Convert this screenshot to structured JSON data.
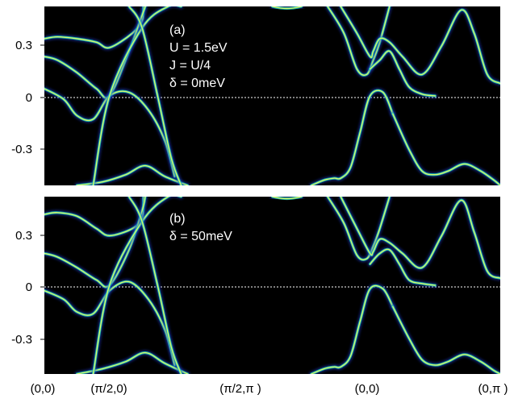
{
  "colors": {
    "background": "#000000",
    "band_core": "#d8f56a",
    "band_glow": "#16c3b6",
    "band_halo": "#1e3cc8",
    "zero_line": "#ffffff"
  },
  "chart_data": [
    {
      "type": "line",
      "panel": "a",
      "annotations": [
        "(a)",
        "U = 1.5eV",
        "J = U/4",
        "δ = 0meV"
      ],
      "ylim": [
        -0.5,
        0.5
      ],
      "yticks": [
        "0.3",
        "0",
        "-0.3"
      ],
      "xticks": [
        "(0,0)",
        "(π/2,0)",
        "(π/2,π )",
        "(0,0)",
        "(0,π )"
      ],
      "series": [
        {
          "x": [
            0,
            0.2,
            0.5,
            0.8,
            1.0,
            1.35,
            1.5,
            1.52
          ],
          "y": [
            0.32,
            0.33,
            0.32,
            0.3,
            0.27,
            0.35,
            0.42,
            0.5
          ]
        },
        {
          "x": [
            0,
            0.2,
            0.5,
            0.8,
            1.0,
            1.3,
            1.5,
            1.55
          ],
          "y": [
            0.22,
            0.2,
            0.13,
            0.04,
            0,
            0.25,
            0.45,
            0.5
          ]
        },
        {
          "x": [
            0,
            0.3,
            0.5,
            0.75,
            1.0,
            1.3,
            1.6,
            1.85,
            2.0
          ],
          "y": [
            0.04,
            -0.02,
            -0.11,
            -0.13,
            0,
            0.02,
            -0.08,
            -0.25,
            -0.45
          ]
        },
        {
          "x": [
            0.5,
            0.9,
            1.25,
            1.55,
            1.85,
            2.2
          ],
          "y": [
            -0.5,
            -0.48,
            -0.44,
            -0.39,
            -0.45,
            -0.5
          ]
        },
        {
          "x": [
            0.75,
            1.0,
            1.5,
            1.9,
            2.1
          ],
          "y": [
            -0.5,
            0,
            0.38,
            0.5,
            0.5
          ]
        },
        {
          "x": [
            1.3,
            1.5,
            1.75,
            1.95,
            2.1
          ],
          "y": [
            0.5,
            0.38,
            -0.02,
            -0.35,
            -0.5
          ]
        },
        {
          "x": [
            3.5,
            3.65,
            3.8,
            3.95
          ],
          "y": [
            0.5,
            0.49,
            0.49,
            0.5
          ]
        },
        {
          "x": [
            4.1,
            4.3,
            4.45,
            4.55,
            4.7,
            4.85,
            5.0,
            5.2,
            5.35
          ],
          "y": [
            -0.5,
            -0.47,
            -0.46,
            -0.46,
            -0.4,
            -0.2,
            0,
            0.02,
            -0.1
          ]
        },
        {
          "x": [
            5.35,
            5.6,
            5.8,
            6.0,
            6.2,
            6.45,
            6.7,
            6.9,
            7.0
          ],
          "y": [
            -0.1,
            -0.3,
            -0.42,
            -0.44,
            -0.42,
            -0.38,
            -0.42,
            -0.47,
            -0.5
          ]
        },
        {
          "x": [
            4.35,
            4.6,
            4.8,
            4.95,
            5.05,
            5.15,
            5.3
          ],
          "y": [
            0.5,
            0.35,
            0.15,
            0.12,
            0.2,
            0.3,
            0.5
          ]
        },
        {
          "x": [
            4.55,
            4.8,
            5.0,
            5.05,
            5.15,
            5.3,
            5.5,
            5.8,
            6.1,
            6.4,
            6.6,
            6.8,
            7.0
          ],
          "y": [
            0.5,
            0.35,
            0.22,
            0.25,
            0.32,
            0.3,
            0.22,
            0.12,
            0.28,
            0.48,
            0.35,
            0.12,
            0.07
          ]
        },
        {
          "x": [
            5.0,
            5.15,
            5.3,
            5.45,
            5.6,
            5.8,
            6.0
          ],
          "y": [
            0.15,
            0.2,
            0.25,
            0.15,
            0.05,
            0.01,
            0
          ]
        }
      ]
    },
    {
      "type": "line",
      "panel": "b",
      "annotations": [
        "(b)",
        "δ = 50meV"
      ],
      "ylim": [
        -0.5,
        0.5
      ],
      "yticks": [
        "0.3",
        "0",
        "-0.3"
      ],
      "xticks": [
        "(0,0)",
        "(π/2,0)",
        "(π/2,π )",
        "(0,0)",
        "(0,π )"
      ],
      "series": [
        {
          "x": [
            0,
            0.2,
            0.5,
            0.8,
            1.0,
            1.35,
            1.5,
            1.52
          ],
          "y": [
            0.4,
            0.41,
            0.39,
            0.32,
            0.28,
            0.32,
            0.38,
            0.5
          ]
        },
        {
          "x": [
            0,
            0.2,
            0.5,
            0.8,
            1.0,
            1.3,
            1.5,
            1.55
          ],
          "y": [
            0.18,
            0.16,
            0.1,
            0.03,
            0,
            0.2,
            0.42,
            0.5
          ]
        },
        {
          "x": [
            0,
            0.3,
            0.5,
            0.75,
            1.0,
            1.3,
            1.6,
            1.85,
            2.0
          ],
          "y": [
            -0.03,
            -0.08,
            -0.15,
            -0.16,
            -0.03,
            0.02,
            -0.08,
            -0.25,
            -0.45
          ]
        },
        {
          "x": [
            0.5,
            0.9,
            1.25,
            1.55,
            1.85,
            2.2
          ],
          "y": [
            -0.5,
            -0.47,
            -0.43,
            -0.38,
            -0.44,
            -0.5
          ]
        },
        {
          "x": [
            0.75,
            1.0,
            1.5,
            1.9,
            2.1
          ],
          "y": [
            -0.5,
            0,
            0.36,
            0.5,
            0.5
          ]
        },
        {
          "x": [
            1.3,
            1.5,
            1.75,
            1.95,
            2.1
          ],
          "y": [
            0.5,
            0.36,
            -0.02,
            -0.35,
            -0.5
          ]
        },
        {
          "x": [
            3.5,
            3.65,
            3.8,
            3.95
          ],
          "y": [
            0.5,
            0.49,
            0.49,
            0.5
          ]
        },
        {
          "x": [
            4.1,
            4.3,
            4.45,
            4.55,
            4.7,
            4.85,
            5.0,
            5.2,
            5.35
          ],
          "y": [
            -0.5,
            -0.47,
            -0.46,
            -0.46,
            -0.4,
            -0.2,
            -0.02,
            -0.02,
            -0.12
          ]
        },
        {
          "x": [
            5.35,
            5.6,
            5.8,
            6.0,
            6.2,
            6.45,
            6.7,
            6.9,
            7.0
          ],
          "y": [
            -0.12,
            -0.3,
            -0.42,
            -0.45,
            -0.43,
            -0.39,
            -0.43,
            -0.48,
            -0.5
          ]
        },
        {
          "x": [
            4.35,
            4.6,
            4.8,
            4.95,
            5.05,
            5.15,
            5.3
          ],
          "y": [
            0.5,
            0.35,
            0.17,
            0.15,
            0.22,
            0.32,
            0.5
          ]
        },
        {
          "x": [
            4.55,
            4.8,
            5.0,
            5.05,
            5.15,
            5.3,
            5.5,
            5.8,
            6.1,
            6.4,
            6.6,
            6.8,
            7.0
          ],
          "y": [
            0.5,
            0.32,
            0.18,
            0.19,
            0.26,
            0.24,
            0.18,
            0.1,
            0.28,
            0.48,
            0.3,
            0.08,
            0.04
          ]
        },
        {
          "x": [
            5.0,
            5.15,
            5.3,
            5.45,
            5.6,
            5.8,
            6.0
          ],
          "y": [
            0.12,
            0.18,
            0.2,
            0.12,
            0.03,
            0.01,
            0
          ]
        }
      ]
    }
  ]
}
